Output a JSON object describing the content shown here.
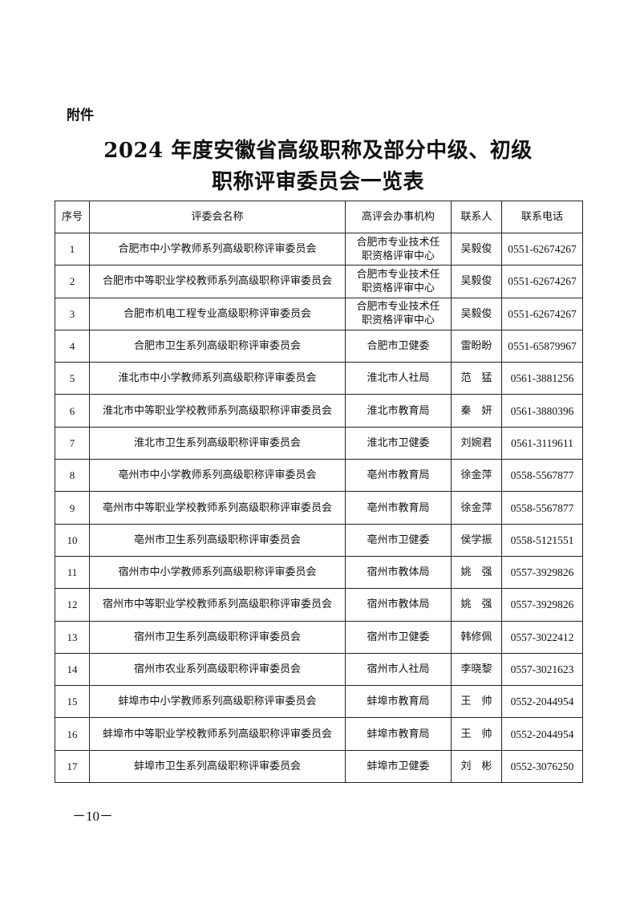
{
  "attachment_label": "附件",
  "title_line1": "2024 年度安徽省高级职称及部分中级、初级",
  "title_line2": "职称评审委员会一览表",
  "table": {
    "headers": [
      "序号",
      "评委会名称",
      "高评会办事机构",
      "联系人",
      "联系电话"
    ],
    "rows": [
      [
        "1",
        "合肥市中小学教师系列高级职称评审委员会",
        "合肥市专业技术任职资格评审中心",
        "吴毅俊",
        "0551-62674267"
      ],
      [
        "2",
        "合肥市中等职业学校教师系列高级职称评审委员会",
        "合肥市专业技术任职资格评审中心",
        "吴毅俊",
        "0551-62674267"
      ],
      [
        "3",
        "合肥市机电工程专业高级职称评审委员会",
        "合肥市专业技术任职资格评审中心",
        "吴毅俊",
        "0551-62674267"
      ],
      [
        "4",
        "合肥市卫生系列高级职称评审委员会",
        "合肥市卫健委",
        "雷盼盼",
        "0551-65879967"
      ],
      [
        "5",
        "淮北市中小学教师系列高级职称评审委员会",
        "淮北市人社局",
        "范　猛",
        "0561-3881256"
      ],
      [
        "6",
        "淮北市中等职业学校教师系列高级职称评审委员会",
        "淮北市教育局",
        "秦　妍",
        "0561-3880396"
      ],
      [
        "7",
        "淮北市卫生系列高级职称评审委员会",
        "淮北市卫健委",
        "刘婉君",
        "0561-3119611"
      ],
      [
        "8",
        "亳州市中小学教师系列高级职称评审委员会",
        "亳州市教育局",
        "徐金萍",
        "0558-5567877"
      ],
      [
        "9",
        "亳州市中等职业学校教师系列高级职称评审委员会",
        "亳州市教育局",
        "徐金萍",
        "0558-5567877"
      ],
      [
        "10",
        "亳州市卫生系列高级职称评审委员会",
        "亳州市卫健委",
        "侯学振",
        "0558-5121551"
      ],
      [
        "11",
        "宿州市中小学教师系列高级职称评审委员会",
        "宿州市教体局",
        "姚　强",
        "0557-3929826"
      ],
      [
        "12",
        "宿州市中等职业学校教师系列高级职称评审委员会",
        "宿州市教体局",
        "姚　强",
        "0557-3929826"
      ],
      [
        "13",
        "宿州市卫生系列高级职称评审委员会",
        "宿州市卫健委",
        "韩修佩",
        "0557-3022412"
      ],
      [
        "14",
        "宿州市农业系列高级职称评审委员会",
        "宿州市人社局",
        "李晓黎",
        "0557-3021623"
      ],
      [
        "15",
        "蚌埠市中小学教师系列高级职称评审委员会",
        "蚌埠市教育局",
        "王　帅",
        "0552-2044954"
      ],
      [
        "16",
        "蚌埠市中等职业学校教师系列高级职称评审委员会",
        "蚌埠市教育局",
        "王　帅",
        "0552-2044954"
      ],
      [
        "17",
        "蚌埠市卫生系列高级职称评审委员会",
        "蚌埠市卫健委",
        "刘　彬",
        "0552-3076250"
      ]
    ]
  },
  "page_number": "－10－"
}
